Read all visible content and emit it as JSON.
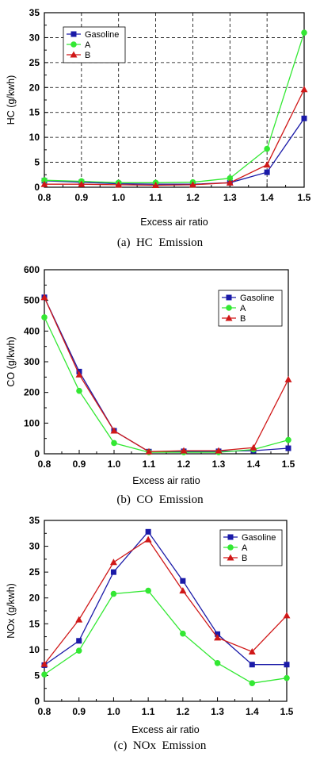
{
  "colors": {
    "Gasoline": "#1a1aa8",
    "A": "#33e833",
    "B": "#d01818",
    "axis": "#000000",
    "grid": "#000000"
  },
  "chart_data": [
    {
      "type": "line",
      "caption": "(a)  HC  Emission",
      "xlabel": "Excess air ratio",
      "ylabel": "HC (g/kwh)",
      "xlim": [
        0.8,
        1.5
      ],
      "ylim": [
        0,
        35
      ],
      "xticks": [
        "0.8",
        "0.9",
        "1.0",
        "1.1",
        "1.2",
        "1.3",
        "1.4",
        "1.5"
      ],
      "yticks": [
        "0",
        "5",
        "10",
        "15",
        "20",
        "25",
        "30",
        "35"
      ],
      "grid": "dashed",
      "legend_position": "top-left",
      "x": [
        0.8,
        0.9,
        1.0,
        1.1,
        1.2,
        1.3,
        1.4,
        1.5
      ],
      "series": [
        {
          "name": "Gasoline",
          "marker": "square",
          "values": [
            1.3,
            1.0,
            0.7,
            0.6,
            0.6,
            0.9,
            3.0,
            13.8
          ]
        },
        {
          "name": "A",
          "marker": "circle",
          "values": [
            1.4,
            1.2,
            0.9,
            0.9,
            1.0,
            1.8,
            7.7,
            31.0
          ]
        },
        {
          "name": "B",
          "marker": "triangle",
          "values": [
            0.6,
            0.6,
            0.5,
            0.4,
            0.5,
            0.9,
            4.5,
            19.6
          ]
        }
      ]
    },
    {
      "type": "line",
      "caption": "(b)  CO  Emission",
      "xlabel": "Excess air ratio",
      "ylabel": "CO (g/kwh)",
      "xlim": [
        0.8,
        1.5
      ],
      "ylim": [
        0,
        600
      ],
      "xticks": [
        "0.8",
        "0.9",
        "1.0",
        "1.1",
        "1.2",
        "1.3",
        "1.4",
        "1.5"
      ],
      "yticks": [
        "0",
        "100",
        "200",
        "300",
        "400",
        "500",
        "600"
      ],
      "grid": "none",
      "legend_position": "top-right",
      "x": [
        0.8,
        0.9,
        1.0,
        1.1,
        1.2,
        1.3,
        1.4,
        1.5
      ],
      "series": [
        {
          "name": "Gasoline",
          "marker": "square",
          "values": [
            510,
            268,
            75,
            7,
            8,
            8,
            10,
            18
          ]
        },
        {
          "name": "A",
          "marker": "circle",
          "values": [
            445,
            205,
            35,
            5,
            5,
            5,
            14,
            45
          ]
        },
        {
          "name": "B",
          "marker": "triangle",
          "values": [
            510,
            258,
            75,
            7,
            10,
            10,
            20,
            242
          ]
        }
      ]
    },
    {
      "type": "line",
      "caption": "(c)  NOx  Emission",
      "xlabel": "Excess air ratio",
      "ylabel": "NOx (g/kwh)",
      "xlim": [
        0.8,
        1.5
      ],
      "ylim": [
        0,
        35
      ],
      "xticks": [
        "0.8",
        "0.9",
        "1.0",
        "1.1",
        "1.2",
        "1.3",
        "1.4",
        "1.5"
      ],
      "yticks": [
        "0",
        "5",
        "10",
        "15",
        "20",
        "25",
        "30",
        "35"
      ],
      "grid": "none",
      "legend_position": "top-right",
      "x": [
        0.8,
        0.9,
        1.0,
        1.1,
        1.2,
        1.3,
        1.4,
        1.5
      ],
      "series": [
        {
          "name": "Gasoline",
          "marker": "square",
          "values": [
            7.0,
            11.7,
            25.0,
            32.8,
            23.3,
            13.0,
            7.1,
            7.1
          ]
        },
        {
          "name": "A",
          "marker": "circle",
          "values": [
            5.2,
            9.8,
            20.8,
            21.4,
            13.1,
            7.4,
            3.5,
            4.5
          ]
        },
        {
          "name": "B",
          "marker": "triangle",
          "values": [
            7.2,
            15.8,
            26.9,
            31.3,
            21.4,
            12.3,
            9.6,
            16.6
          ]
        }
      ]
    }
  ]
}
